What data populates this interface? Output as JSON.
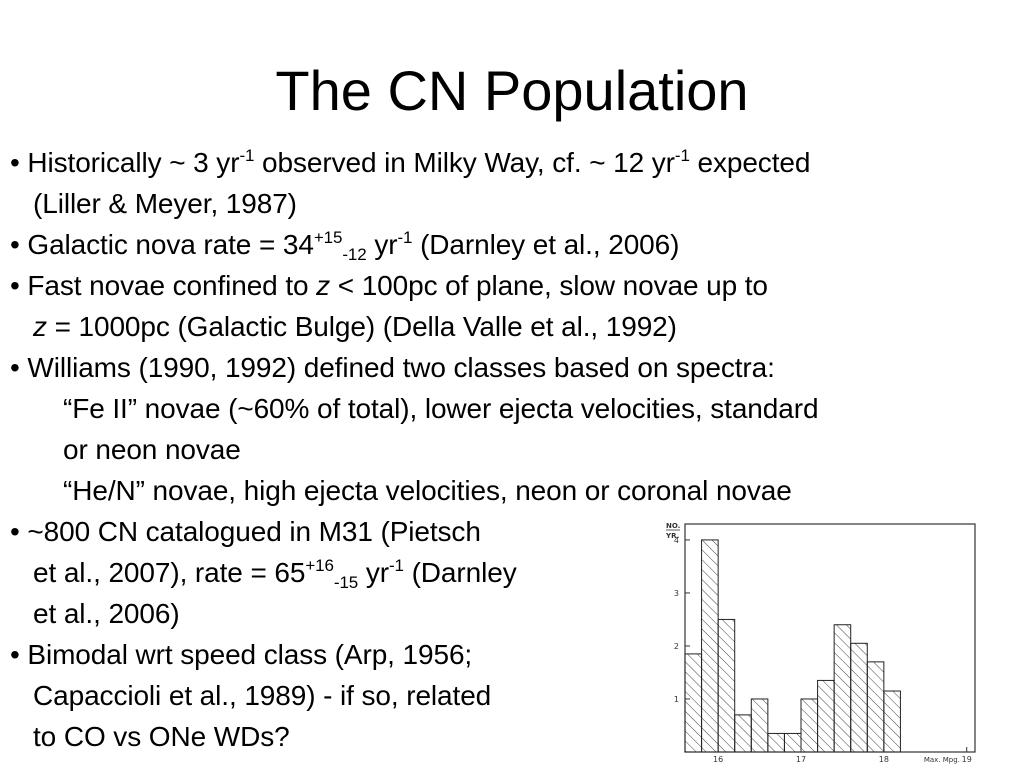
{
  "slide": {
    "title": "The CN Population"
  },
  "bullets": {
    "b1": {
      "bullet": "•",
      "p1": "Historically ~ 3 yr",
      "sup1": "-1",
      "p2": " observed in Milky Way, cf. ~ 12 yr",
      "sup2": "-1",
      "p3": " expected",
      "line2": "(Liller & Meyer, 1987)"
    },
    "b2": {
      "bullet": "•",
      "p1": "Galactic nova rate = 34",
      "sup1": "+15",
      "sub1": "-12",
      "p2": " yr",
      "sup2": "-1",
      "p3": " (Darnley et al., 2006)"
    },
    "b3": {
      "bullet": "•",
      "p1": "Fast novae confined to ",
      "italic1": "z",
      "p2": " < 100pc of plane, slow novae up to",
      "italic2": "z",
      "p3": " = 1000pc (Galactic Bulge) (Della Valle et al., 1992)"
    },
    "b4": {
      "bullet": "•",
      "text": "Williams (1990, 1992) defined two classes based on spectra:",
      "sub1_line1": "“Fe II” novae (~60% of total), lower ejecta velocities, standard",
      "sub1_line2": "or neon novae",
      "sub2": "“He/N” novae, high ejecta velocities, neon or coronal novae"
    },
    "b5": {
      "bullet": "•",
      "line1": "~800 CN catalogued in M31 (Pietsch",
      "p1": "et al., 2007), rate = 65",
      "sup1": "+16",
      "sub1": "-15",
      "p2": " yr",
      "sup2": "-1",
      "p3": " (Darnley",
      "line3": "et al., 2006)"
    },
    "b6": {
      "bullet": "•",
      "line1": "Bimodal wrt speed class (Arp, 1956;",
      "line2": "Capaccioli et al., 1989) - if so, related",
      "line3": "to CO vs ONe WDs?"
    }
  },
  "chart_data": {
    "type": "bar",
    "ylabel": "NO. YR.",
    "xlabel": "Max. Mpg.",
    "y_ticks": [
      "1",
      "2",
      "3",
      "4"
    ],
    "x_ticks": [
      "16",
      "17",
      "18",
      "19"
    ],
    "ylim": [
      0,
      4.3
    ],
    "xlim": [
      15.6,
      19.1
    ],
    "bin_width": 0.2,
    "x": [
      15.7,
      15.9,
      16.1,
      16.3,
      16.5,
      16.7,
      16.9,
      17.1,
      17.3,
      17.5,
      17.7,
      17.9,
      18.1
    ],
    "values": [
      1.85,
      4.0,
      2.5,
      0.7,
      1.0,
      0.35,
      0.35,
      1.0,
      1.35,
      2.4,
      2.05,
      1.7,
      1.15
    ],
    "grid": false
  }
}
